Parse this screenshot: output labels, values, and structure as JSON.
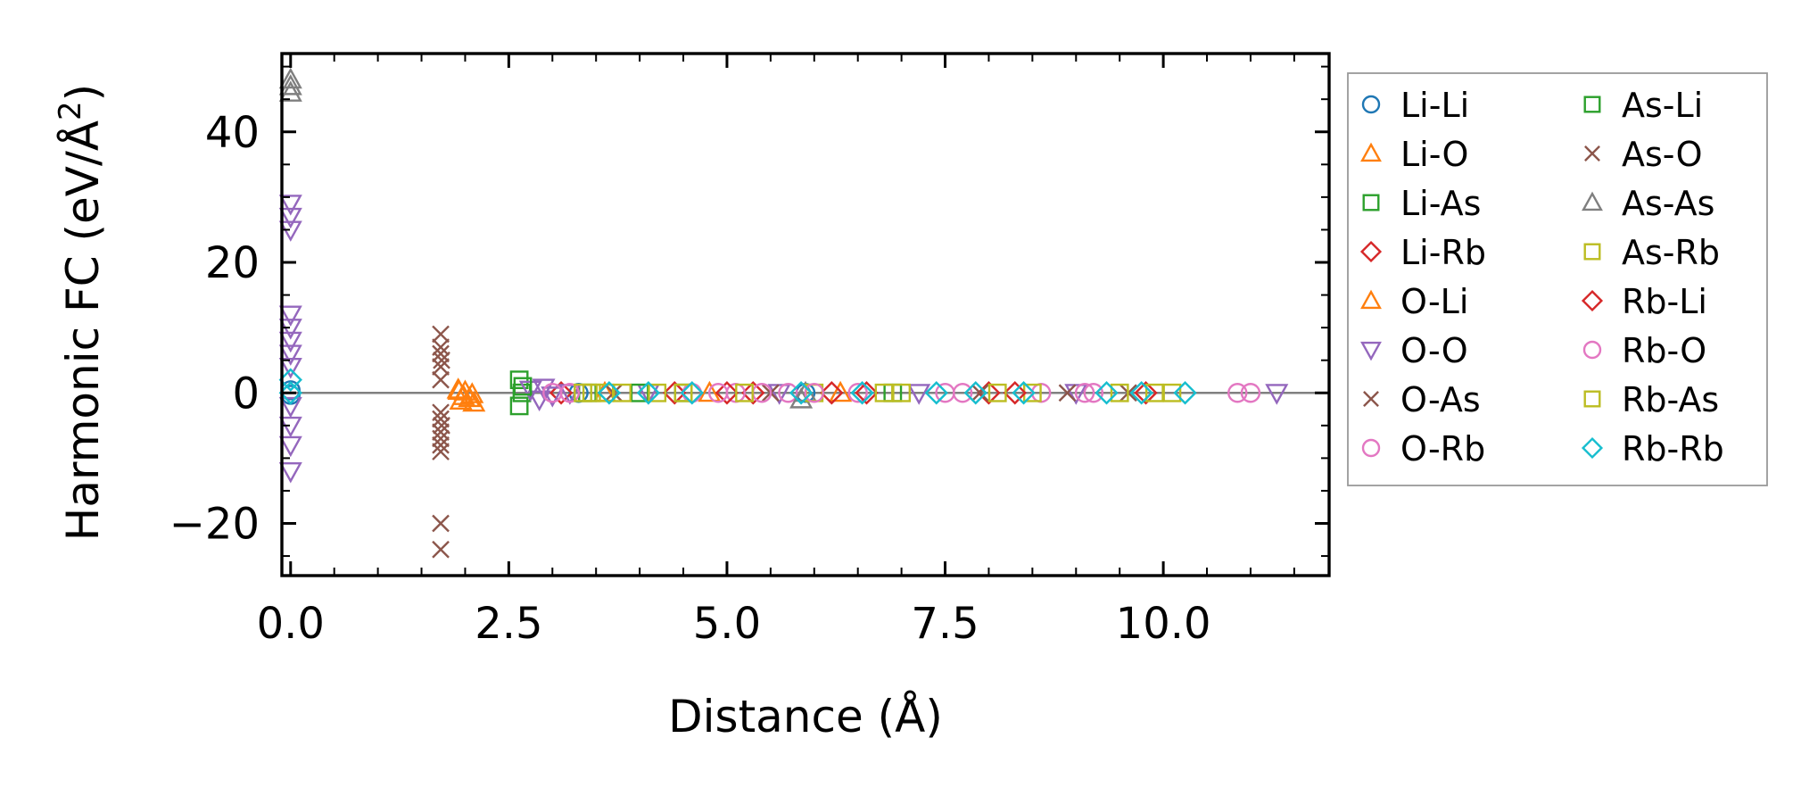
{
  "chart_data": {
    "type": "scatter",
    "xlabel": "Distance (Å)",
    "ylabel_main": "Harmonic FC (eV/Å",
    "ylabel_sup": "2",
    "ylabel_close": ")",
    "xlim": [
      -0.1,
      11.9
    ],
    "ylim": [
      -28,
      52
    ],
    "xticks": [
      {
        "value": 0.0,
        "label": "0.0"
      },
      {
        "value": 2.5,
        "label": "2.5"
      },
      {
        "value": 5.0,
        "label": "5.0"
      },
      {
        "value": 7.5,
        "label": "7.5"
      },
      {
        "value": 10.0,
        "label": "10.0"
      }
    ],
    "yticks": [
      {
        "value": -20,
        "label": "−20"
      },
      {
        "value": 0,
        "label": "0"
      },
      {
        "value": 20,
        "label": "20"
      },
      {
        "value": 40,
        "label": "40"
      }
    ],
    "x_minor_step": 0.5,
    "y_minor_step": 5,
    "zero_line": true,
    "grid": false,
    "legend_position": "outside-right",
    "legend_columns": 2,
    "series": [
      {
        "name": "Li-Li",
        "marker": "circle",
        "color": "#1f77b4",
        "points": [
          [
            0.0,
            0.4
          ],
          [
            0.0,
            -0.3
          ],
          [
            3.3,
            0.0
          ],
          [
            5.9,
            0.0
          ]
        ]
      },
      {
        "name": "Li-O",
        "marker": "triangle-up",
        "color": "#ff7f0e",
        "points": [
          [
            1.92,
            0.5
          ],
          [
            1.95,
            -1.2
          ],
          [
            2.0,
            0.2
          ],
          [
            2.05,
            -0.8
          ],
          [
            2.1,
            -1.5
          ],
          [
            3.6,
            0.0
          ],
          [
            4.8,
            0.0
          ],
          [
            6.3,
            0.0
          ]
        ]
      },
      {
        "name": "Li-As",
        "marker": "square",
        "color": "#2ca02c",
        "points": [
          [
            2.62,
            2.0
          ],
          [
            2.62,
            -2.0
          ],
          [
            2.65,
            0.0
          ],
          [
            3.4,
            0.0
          ],
          [
            4.5,
            0.0
          ],
          [
            6.9,
            0.0
          ]
        ]
      },
      {
        "name": "Li-Rb",
        "marker": "diamond",
        "color": "#d62728",
        "points": [
          [
            3.1,
            0.0
          ],
          [
            4.4,
            0.0
          ],
          [
            5.3,
            0.0
          ],
          [
            6.2,
            0.0
          ],
          [
            8.0,
            0.0
          ],
          [
            9.8,
            0.0
          ]
        ]
      },
      {
        "name": "O-Li",
        "marker": "triangle-up",
        "color": "#ff7f0e",
        "points": [
          [
            1.93,
            0.3
          ],
          [
            1.98,
            -0.5
          ],
          [
            2.08,
            -0.2
          ]
        ]
      },
      {
        "name": "O-O",
        "marker": "triangle-down",
        "color": "#9467bd",
        "points": [
          [
            0.0,
            29
          ],
          [
            0.0,
            27
          ],
          [
            0.0,
            25
          ],
          [
            0.0,
            12
          ],
          [
            0.0,
            10
          ],
          [
            0.0,
            8
          ],
          [
            0.0,
            6
          ],
          [
            0.0,
            4
          ],
          [
            0.0,
            -2
          ],
          [
            0.0,
            -5
          ],
          [
            0.0,
            -8
          ],
          [
            0.0,
            -12
          ],
          [
            2.75,
            0.5
          ],
          [
            2.85,
            -1.0
          ],
          [
            2.9,
            0.8
          ],
          [
            3.0,
            -0.4
          ],
          [
            3.2,
            0.0
          ],
          [
            4.1,
            0.0
          ],
          [
            5.6,
            0.0
          ],
          [
            7.2,
            0.0
          ],
          [
            9.0,
            0.0
          ],
          [
            11.3,
            0.0
          ]
        ]
      },
      {
        "name": "O-As",
        "marker": "x",
        "color": "#8c564b",
        "points": [
          [
            1.72,
            9
          ],
          [
            1.72,
            7
          ],
          [
            1.72,
            6
          ],
          [
            1.72,
            4
          ],
          [
            1.72,
            2
          ],
          [
            1.72,
            -3
          ],
          [
            1.72,
            -4
          ],
          [
            1.72,
            -6
          ],
          [
            1.72,
            -7
          ],
          [
            1.72,
            -8
          ],
          [
            1.72,
            -9
          ],
          [
            1.72,
            -20
          ],
          [
            1.72,
            -24
          ],
          [
            3.7,
            0.0
          ],
          [
            5.5,
            0.0
          ],
          [
            8.9,
            0.0
          ]
        ]
      },
      {
        "name": "O-Rb",
        "marker": "circle",
        "color": "#e377c2",
        "points": [
          [
            3.0,
            0.0
          ],
          [
            3.2,
            0.0
          ],
          [
            4.6,
            0.0
          ],
          [
            5.1,
            0.0
          ],
          [
            5.4,
            0.0
          ],
          [
            5.7,
            0.0
          ],
          [
            6.5,
            0.0
          ],
          [
            7.7,
            0.0
          ],
          [
            8.6,
            0.0
          ],
          [
            9.2,
            0.0
          ],
          [
            10.85,
            0.0
          ],
          [
            11.0,
            0.0
          ]
        ]
      },
      {
        "name": "As-Li",
        "marker": "square",
        "color": "#2ca02c",
        "points": [
          [
            2.66,
            1.0
          ],
          [
            4.0,
            0.0
          ]
        ]
      },
      {
        "name": "As-O",
        "marker": "x",
        "color": "#8c564b",
        "points": [
          [
            1.73,
            5
          ],
          [
            1.73,
            -5
          ],
          [
            7.9,
            0.0
          ],
          [
            9.6,
            0.0
          ]
        ]
      },
      {
        "name": "As-As",
        "marker": "triangle-up",
        "color": "#7f7f7f",
        "points": [
          [
            0.0,
            48
          ],
          [
            0.0,
            47
          ],
          [
            0.0,
            46
          ],
          [
            5.85,
            -1.0
          ],
          [
            5.9,
            0.0
          ]
        ]
      },
      {
        "name": "As-Rb",
        "marker": "square",
        "color": "#bcbd22",
        "points": [
          [
            3.45,
            0.0
          ],
          [
            3.6,
            0.0
          ],
          [
            3.8,
            0.0
          ],
          [
            4.2,
            0.0
          ],
          [
            4.5,
            0.0
          ],
          [
            6.0,
            0.0
          ],
          [
            7.0,
            0.0
          ],
          [
            8.5,
            0.0
          ],
          [
            9.5,
            0.0
          ],
          [
            10.1,
            0.0
          ]
        ]
      },
      {
        "name": "Rb-Li",
        "marker": "diamond",
        "color": "#d62728",
        "points": [
          [
            5.0,
            0.0
          ],
          [
            6.6,
            0.0
          ],
          [
            8.3,
            0.0
          ]
        ]
      },
      {
        "name": "Rb-O",
        "marker": "circle",
        "color": "#e377c2",
        "points": [
          [
            4.9,
            0.0
          ],
          [
            6.0,
            0.0
          ],
          [
            7.5,
            0.0
          ],
          [
            9.1,
            0.0
          ]
        ]
      },
      {
        "name": "Rb-As",
        "marker": "square",
        "color": "#bcbd22",
        "points": [
          [
            3.35,
            0.0
          ],
          [
            5.2,
            0.0
          ],
          [
            6.8,
            0.0
          ],
          [
            8.1,
            0.0
          ],
          [
            9.9,
            0.0
          ]
        ]
      },
      {
        "name": "Rb-Rb",
        "marker": "diamond",
        "color": "#17becf",
        "points": [
          [
            0.0,
            2
          ],
          [
            0.0,
            0
          ],
          [
            3.65,
            0.0
          ],
          [
            4.1,
            0.0
          ],
          [
            4.6,
            0.0
          ],
          [
            5.85,
            0.0
          ],
          [
            6.55,
            0.0
          ],
          [
            7.4,
            0.0
          ],
          [
            7.85,
            0.0
          ],
          [
            8.4,
            0.0
          ],
          [
            9.35,
            0.0
          ],
          [
            9.75,
            0.0
          ],
          [
            10.25,
            0.0
          ]
        ]
      }
    ]
  }
}
